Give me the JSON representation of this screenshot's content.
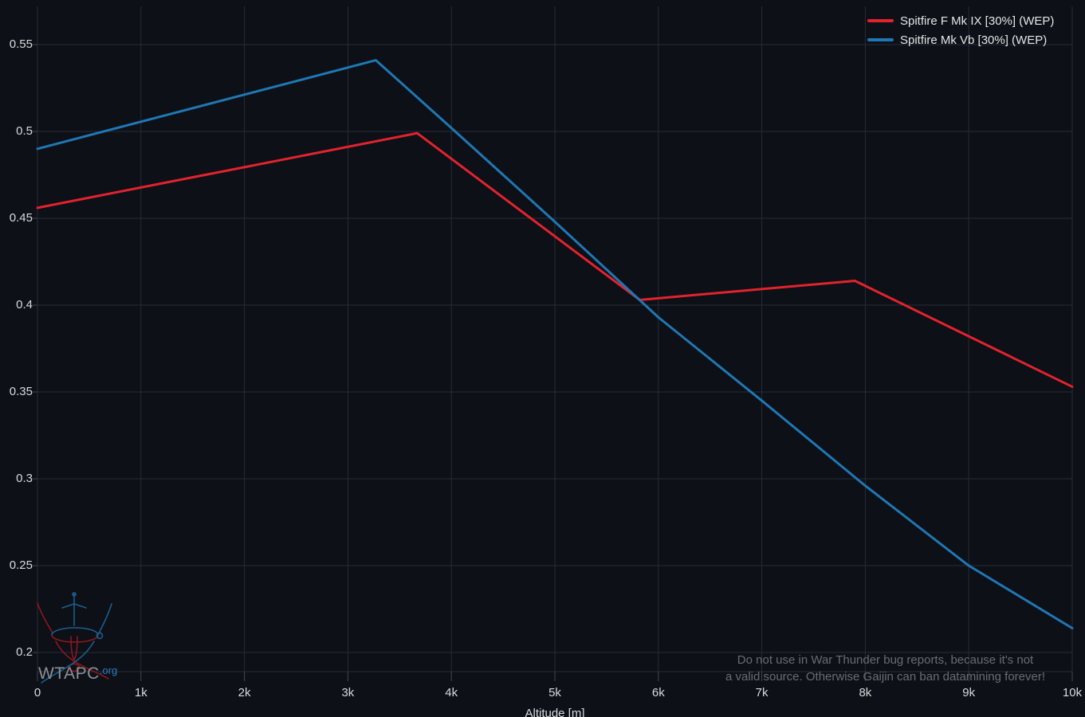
{
  "chart_data": {
    "type": "line",
    "title": "",
    "xlabel": "Altitude [m]",
    "ylabel": "",
    "xlim": [
      0,
      10000
    ],
    "ylim": [
      0.189,
      0.572
    ],
    "grid": true,
    "legend_position": "top-right",
    "x_ticks": [
      {
        "value": 0,
        "label": "0"
      },
      {
        "value": 1000,
        "label": "1k"
      },
      {
        "value": 2000,
        "label": "2k"
      },
      {
        "value": 3000,
        "label": "3k"
      },
      {
        "value": 4000,
        "label": "4k"
      },
      {
        "value": 5000,
        "label": "5k"
      },
      {
        "value": 6000,
        "label": "6k"
      },
      {
        "value": 7000,
        "label": "7k"
      },
      {
        "value": 8000,
        "label": "8k"
      },
      {
        "value": 9000,
        "label": "9k"
      },
      {
        "value": 10000,
        "label": "10k"
      }
    ],
    "y_ticks": [
      {
        "value": 0.2,
        "label": "0.2"
      },
      {
        "value": 0.25,
        "label": "0.25"
      },
      {
        "value": 0.3,
        "label": "0.3"
      },
      {
        "value": 0.35,
        "label": "0.35"
      },
      {
        "value": 0.4,
        "label": "0.4"
      },
      {
        "value": 0.45,
        "label": "0.45"
      },
      {
        "value": 0.5,
        "label": "0.5"
      },
      {
        "value": 0.55,
        "label": "0.55"
      }
    ],
    "series": [
      {
        "name": "Spitfire F Mk IX [30%] (WEP)",
        "color": "#e1232e",
        "points": [
          [
            0,
            0.456
          ],
          [
            3670,
            0.499
          ],
          [
            5820,
            0.403
          ],
          [
            7900,
            0.414
          ],
          [
            10000,
            0.353
          ]
        ]
      },
      {
        "name": "Spitfire Mk Vb [30%] (WEP)",
        "color": "#1f77b4",
        "points": [
          [
            0,
            0.49
          ],
          [
            3270,
            0.541
          ],
          [
            4000,
            0.502
          ],
          [
            5000,
            0.448
          ],
          [
            6000,
            0.393
          ],
          [
            7000,
            0.345
          ],
          [
            8000,
            0.296
          ],
          [
            9000,
            0.25
          ],
          [
            10000,
            0.214
          ]
        ]
      }
    ]
  },
  "watermark": {
    "line1": "Do not use in War Thunder bug reports, because it's not",
    "line2": "a valid source. Otherwise Gaijin can ban datamining forever!"
  },
  "logo": {
    "text": "WTAPC",
    "suffix": ".org"
  },
  "colors": {
    "background": "#0d1016",
    "grid": "#262d3a",
    "tick": "#3f4858",
    "red": "#e1232e",
    "blue": "#1f77b4",
    "tick_text": "#d8dade",
    "legend_text": "#e4e6e9",
    "watermark": "#686d75",
    "logo_text": "#8b9097",
    "logo_suffix": "#2b7cc0"
  }
}
